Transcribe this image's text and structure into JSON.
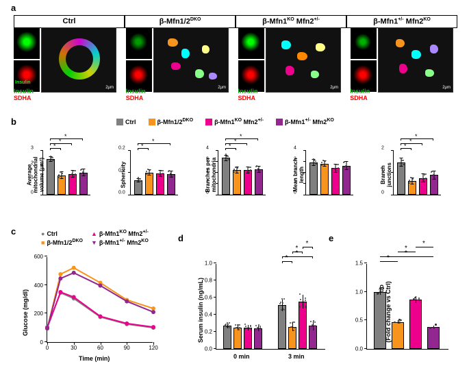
{
  "colors": {
    "ctrl": "#808080",
    "dko": "#f7941d",
    "mfn1ko": "#ec008c",
    "mfn2ko": "#92278f",
    "insulin": "#00ff00",
    "sdha": "#ff0000",
    "axis": "#000000",
    "bg": "#ffffff"
  },
  "groups": {
    "ctrl": "Ctrl",
    "dko_html": "β-Mfn1/2<sup>DKO</sup>",
    "mfn1ko_html": "β-Mfn1<sup>KO</sup> Mfn2<sup>+/-</sup>",
    "mfn2ko_html": "β-Mfn1<sup>+/-</sup> Mfn2<sup>KO</sup>"
  },
  "panel_a": {
    "letter": "a",
    "scale_label": "2μm",
    "insulin_label": "Insulin",
    "sdha_label": "SDHA"
  },
  "panel_b": {
    "letter": "b",
    "charts": [
      {
        "ylab": "Average\nmitochondrial\nvolume (μm³)",
        "ymax": 3,
        "ytick": 1,
        "vals": [
          2.4,
          1.3,
          1.4,
          1.5
        ],
        "err": [
          0.2,
          0.25,
          0.25,
          0.25
        ],
        "sig": [
          [
            0,
            1
          ],
          [
            0,
            2
          ],
          [
            0,
            3
          ]
        ]
      },
      {
        "ylab": "Sphericity",
        "ymax": 0.2,
        "ytick": 0.1,
        "vals": [
          0.065,
          0.1,
          0.095,
          0.093
        ],
        "err": [
          0.01,
          0.015,
          0.015,
          0.015
        ],
        "sig": [
          [
            0,
            1
          ],
          [
            0,
            3
          ]
        ]
      },
      {
        "ylab": "Branches per\nmitochondria",
        "ymax": 4,
        "ytick": 1,
        "vals": [
          3.3,
          2.2,
          2.2,
          2.3
        ],
        "err": [
          0.3,
          0.3,
          0.3,
          0.3
        ],
        "sig": [
          [
            0,
            1
          ],
          [
            0,
            2
          ],
          [
            0,
            3
          ]
        ]
      },
      {
        "ylab": "Mean branch\nlength",
        "ymax": 4,
        "ytick": 1,
        "vals": [
          2.9,
          2.8,
          2.4,
          2.6
        ],
        "err": [
          0.3,
          0.3,
          0.4,
          0.4
        ],
        "sig": []
      },
      {
        "ylab": "Branch\njunctions",
        "ymax": 2,
        "ytick": 1,
        "vals": [
          1.45,
          0.62,
          0.75,
          0.88
        ],
        "err": [
          0.2,
          0.15,
          0.2,
          0.2
        ],
        "sig": [
          [
            0,
            1
          ],
          [
            0,
            2
          ],
          [
            0,
            3
          ]
        ]
      }
    ]
  },
  "panel_c": {
    "letter": "c",
    "ylab": "Glucose (mg/dl)",
    "xlab": "Time (min)",
    "xmax": 120,
    "xtick": 30,
    "ymax": 600,
    "ytick": 200,
    "x": [
      0,
      15,
      30,
      60,
      90,
      120
    ],
    "series": {
      "ctrl": [
        110,
        350,
        310,
        180,
        130,
        105
      ],
      "dko": [
        100,
        480,
        525,
        420,
        300,
        240
      ],
      "mfn1ko": [
        105,
        355,
        320,
        185,
        135,
        110
      ],
      "mfn2ko": [
        100,
        450,
        490,
        400,
        290,
        215
      ]
    }
  },
  "panel_d": {
    "letter": "d",
    "ylab": "Serum insulin (ng/mL)",
    "xcats": [
      "0 min",
      "3 min"
    ],
    "ymax": 1.0,
    "ytick": 0.2,
    "vals0": [
      0.27,
      0.25,
      0.25,
      0.24
    ],
    "err0": [
      0.03,
      0.03,
      0.03,
      0.03
    ],
    "vals3": [
      0.51,
      0.26,
      0.55,
      0.27
    ],
    "err3": [
      0.07,
      0.05,
      0.08,
      0.05
    ],
    "sig3": [
      [
        0,
        1
      ],
      [
        0,
        3
      ],
      [
        2,
        1
      ],
      [
        2,
        3
      ]
    ]
  },
  "panel_e": {
    "letter": "e",
    "ylab": "mtDNA/nDNA ratio\n(Fold change vs Ctrl)",
    "ymax": 1.5,
    "ytick": 0.5,
    "vals": [
      1.0,
      0.47,
      0.87,
      0.38
    ],
    "err": [
      0.05,
      0.03,
      0.06,
      0.03
    ],
    "sig": [
      [
        0,
        1
      ],
      [
        0,
        3
      ],
      [
        2,
        1
      ],
      [
        2,
        3
      ]
    ]
  }
}
